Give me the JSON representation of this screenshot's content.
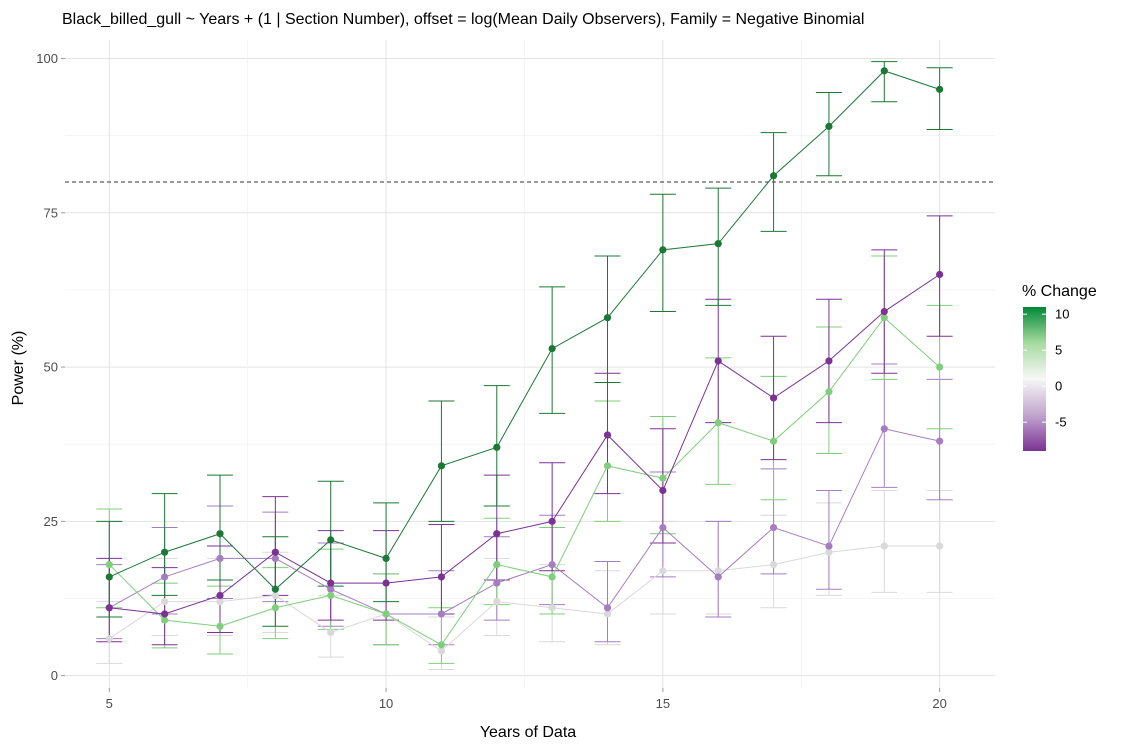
{
  "chart_data": {
    "type": "line",
    "title": "Black_billed_gull ~ Years + (1 | Section Number), offset = log(Mean Daily Observers), Family = Negative Binomial",
    "xlabel": "Years of Data",
    "ylabel": "Power (%)",
    "xlim": [
      4.2,
      21
    ],
    "ylim": [
      -2,
      103
    ],
    "x_ticks": [
      5,
      10,
      15,
      20
    ],
    "x_tick_labels": [
      "5",
      "10",
      "15",
      "20"
    ],
    "y_ticks": [
      0,
      25,
      50,
      75,
      100
    ],
    "y_tick_labels": [
      "0",
      "25",
      "50",
      "75",
      "100"
    ],
    "grid": true,
    "reference_line": {
      "y": 80,
      "style": "dashed"
    },
    "x": [
      5,
      6,
      7,
      8,
      9,
      10,
      11,
      12,
      13,
      14,
      15,
      16,
      17,
      18,
      19,
      20
    ],
    "series": [
      {
        "pct_change": 10,
        "color": "#1b7837",
        "values": [
          16,
          20,
          23,
          14,
          22,
          19,
          34,
          37,
          53,
          58,
          69,
          70,
          81,
          89,
          98,
          95
        ],
        "lower": [
          9.5,
          13,
          15.5,
          8,
          14.5,
          12,
          25,
          27.5,
          42.5,
          47.5,
          59,
          60,
          72,
          81,
          93,
          88.5
        ],
        "upper": [
          25,
          29.5,
          32.5,
          22.5,
          31.5,
          28,
          44.5,
          47,
          63,
          68,
          78,
          79,
          88,
          94.5,
          99.5,
          98.5
        ]
      },
      {
        "pct_change": 5,
        "color": "#7fce7b",
        "values": [
          18,
          9,
          8,
          11,
          13,
          10,
          5,
          18,
          16,
          34,
          32,
          41,
          38,
          46,
          58,
          50
        ],
        "lower": [
          11,
          4.5,
          3.5,
          6,
          7.5,
          5,
          2,
          11.5,
          10,
          25,
          23,
          31,
          28.5,
          36,
          48,
          40
        ],
        "upper": [
          27,
          15,
          14.5,
          17.5,
          20.5,
          16.5,
          11,
          25.5,
          24,
          44.5,
          42,
          51.5,
          48.5,
          56.5,
          68,
          60
        ]
      },
      {
        "pct_change": 0,
        "color": "#d9d9d9",
        "values": [
          6,
          12,
          12,
          13,
          7,
          10,
          4,
          12,
          11,
          10,
          17,
          17,
          18,
          20,
          21,
          21
        ],
        "lower": [
          2,
          6.5,
          6.5,
          7,
          3,
          5,
          1,
          6.5,
          5.5,
          5,
          10,
          10,
          11,
          13,
          13.5,
          13.5
        ],
        "upper": [
          12,
          19,
          19,
          20,
          13,
          16.5,
          9.5,
          19,
          18,
          17,
          25,
          25,
          26,
          28,
          30,
          30
        ]
      },
      {
        "pct_change": -5,
        "color": "#a57ec1",
        "values": [
          11,
          16,
          19,
          19,
          14,
          10,
          10,
          15,
          18,
          11,
          24,
          16,
          24,
          21,
          40,
          38
        ],
        "lower": [
          6,
          10,
          12.5,
          12,
          8,
          5,
          5,
          9,
          11.5,
          5.5,
          16,
          9.5,
          16.5,
          14,
          30.5,
          28.5
        ],
        "upper": [
          18,
          24,
          27.5,
          26.5,
          21.5,
          16.5,
          17,
          22.5,
          26,
          18.5,
          33,
          25,
          33.5,
          30,
          50.5,
          48
        ]
      },
      {
        "pct_change": -9,
        "color": "#7b3294",
        "values": [
          11,
          10,
          13,
          20,
          15,
          15,
          16,
          23,
          25,
          39,
          30,
          51,
          45,
          51,
          59,
          65
        ],
        "lower": [
          5.5,
          5,
          7,
          13,
          9,
          9,
          10,
          15.5,
          17,
          29.5,
          21.5,
          41,
          35,
          41,
          49,
          55
        ],
        "upper": [
          19,
          17.5,
          21,
          29,
          23.5,
          23.5,
          24.5,
          32.5,
          34.5,
          49,
          40,
          61,
          55,
          61,
          69,
          74.5
        ]
      }
    ],
    "legend": {
      "title": "% Change",
      "position": "right",
      "labels": [
        "10",
        "5",
        "0",
        "-5"
      ],
      "breaks": [
        10,
        5,
        0,
        -5
      ],
      "range": [
        -9,
        11
      ],
      "gradient": [
        "#7b3294",
        "#c2a5cf",
        "#f7f7f7",
        "#a6dba0",
        "#008837"
      ]
    }
  }
}
